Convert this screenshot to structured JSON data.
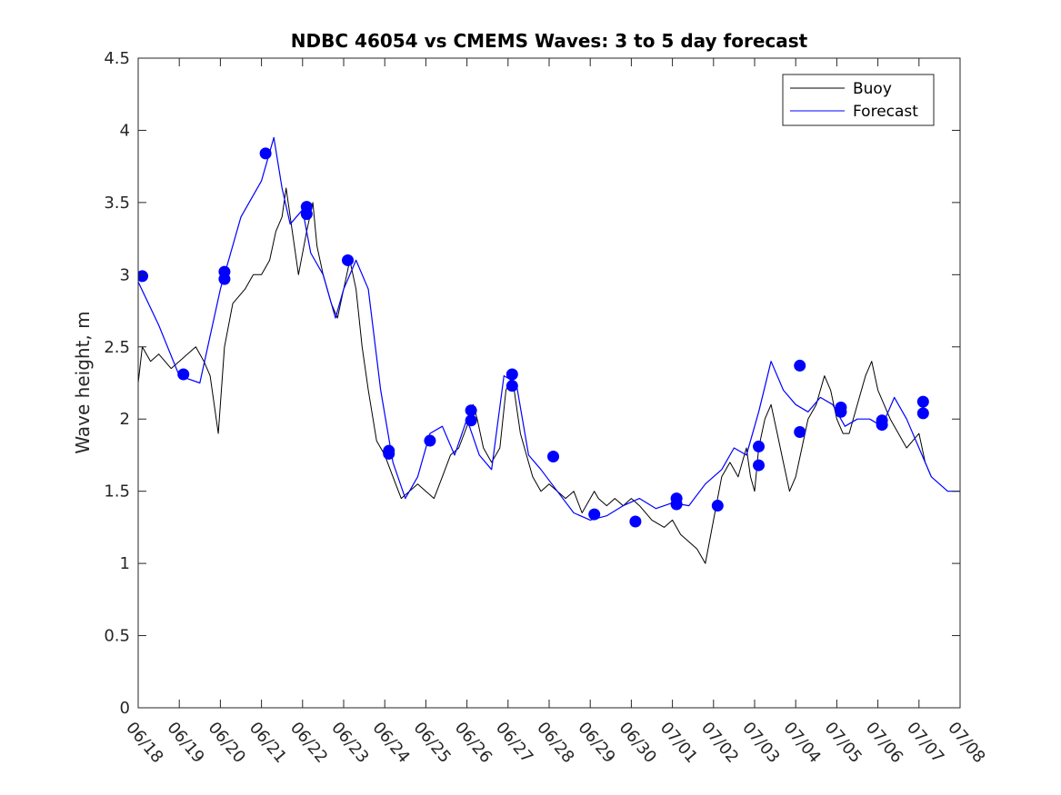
{
  "chart_data": {
    "type": "line",
    "title": "NDBC 46054 vs CMEMS Waves: 3 to 5 day forecast",
    "xlabel": "",
    "ylabel": "Wave height, m",
    "ylim": [
      0,
      4.5
    ],
    "xlim": [
      "06/18",
      "07/08"
    ],
    "x_tick_labels": [
      "06/18",
      "06/19",
      "06/20",
      "06/21",
      "06/22",
      "06/23",
      "06/24",
      "06/25",
      "06/26",
      "06/27",
      "06/28",
      "06/29",
      "06/30",
      "07/01",
      "07/02",
      "07/03",
      "07/04",
      "07/05",
      "07/06",
      "07/07",
      "07/08"
    ],
    "y_tick_labels": [
      "0",
      "0.5",
      "1",
      "1.5",
      "2",
      "2.5",
      "3",
      "3.5",
      "4",
      "4.5"
    ],
    "grid": false,
    "legend_position": "top-right",
    "series": [
      {
        "name": "Buoy",
        "color": "#000000",
        "x_day": [
          0,
          0.1,
          0.3,
          0.5,
          0.8,
          1.0,
          1.2,
          1.4,
          1.6,
          1.75,
          1.85,
          1.95,
          2.1,
          2.3,
          2.6,
          2.8,
          3.0,
          3.2,
          3.35,
          3.5,
          3.6,
          3.75,
          3.9,
          4.1,
          4.25,
          4.35,
          4.5,
          4.7,
          4.85,
          5.0,
          5.15,
          5.3,
          5.45,
          5.6,
          5.8,
          6.0,
          6.2,
          6.4,
          6.6,
          6.8,
          7.0,
          7.2,
          7.4,
          7.6,
          7.8,
          8.0,
          8.15,
          8.25,
          8.4,
          8.6,
          8.8,
          8.95,
          9.1,
          9.2,
          9.3,
          9.45,
          9.6,
          9.8,
          10.0,
          10.2,
          10.4,
          10.6,
          10.8,
          11.0,
          11.1,
          11.2,
          11.4,
          11.6,
          11.8,
          12.0,
          12.2,
          12.5,
          12.8,
          13.0,
          13.2,
          13.4,
          13.6,
          13.8,
          14.0,
          14.2,
          14.4,
          14.6,
          14.7,
          14.8,
          14.9,
          15.0,
          15.1,
          15.25,
          15.4,
          15.55,
          15.7,
          15.85,
          16.0,
          16.15,
          16.3,
          16.5,
          16.7,
          16.85,
          17.0,
          17.15,
          17.3,
          17.5,
          17.7,
          17.85,
          18.0,
          18.15,
          18.3,
          18.5,
          18.7,
          18.85,
          19.0,
          19.15,
          19.3
        ],
        "y": [
          2.25,
          2.5,
          2.4,
          2.45,
          2.35,
          2.4,
          2.45,
          2.5,
          2.4,
          2.3,
          2.1,
          1.9,
          2.5,
          2.8,
          2.9,
          3.0,
          3.0,
          3.1,
          3.3,
          3.4,
          3.6,
          3.3,
          3.0,
          3.3,
          3.5,
          3.2,
          3.0,
          2.8,
          2.7,
          2.9,
          3.1,
          2.9,
          2.5,
          2.2,
          1.85,
          1.75,
          1.6,
          1.45,
          1.5,
          1.55,
          1.5,
          1.45,
          1.6,
          1.75,
          1.8,
          1.95,
          2.1,
          2.0,
          1.8,
          1.7,
          1.8,
          2.2,
          2.3,
          2.1,
          1.9,
          1.75,
          1.6,
          1.5,
          1.55,
          1.5,
          1.45,
          1.5,
          1.35,
          1.45,
          1.5,
          1.45,
          1.4,
          1.45,
          1.4,
          1.45,
          1.4,
          1.3,
          1.25,
          1.3,
          1.2,
          1.15,
          1.1,
          1.0,
          1.3,
          1.6,
          1.7,
          1.6,
          1.7,
          1.8,
          1.6,
          1.5,
          1.8,
          2.0,
          2.1,
          1.9,
          1.7,
          1.5,
          1.6,
          1.8,
          2.0,
          2.1,
          2.3,
          2.2,
          2.0,
          1.9,
          1.9,
          2.1,
          2.3,
          2.4,
          2.2,
          2.1,
          2.0,
          1.9,
          1.8,
          1.85,
          1.9,
          1.7,
          1.6
        ]
      },
      {
        "name": "Forecast",
        "color": "#0000ff",
        "x_day": [
          0,
          0.5,
          1.0,
          1.5,
          2.0,
          2.5,
          3.0,
          3.3,
          3.5,
          3.7,
          4.0,
          4.2,
          4.5,
          4.8,
          5.0,
          5.3,
          5.6,
          5.9,
          6.2,
          6.5,
          6.8,
          7.1,
          7.4,
          7.7,
          8.0,
          8.3,
          8.6,
          8.9,
          9.2,
          9.5,
          9.8,
          10.2,
          10.6,
          11.0,
          11.4,
          11.8,
          12.2,
          12.6,
          13.0,
          13.4,
          13.8,
          14.2,
          14.5,
          14.8,
          15.1,
          15.4,
          15.7,
          16.0,
          16.3,
          16.6,
          16.9,
          17.2,
          17.5,
          17.8,
          18.1,
          18.4,
          18.7,
          19.0,
          19.3,
          19.7,
          20.0
        ],
        "y": [
          2.95,
          2.65,
          2.3,
          2.25,
          2.9,
          3.4,
          3.65,
          3.95,
          3.6,
          3.35,
          3.45,
          3.15,
          3.0,
          2.7,
          2.9,
          3.1,
          2.9,
          2.2,
          1.7,
          1.45,
          1.6,
          1.9,
          1.95,
          1.75,
          2.0,
          1.75,
          1.65,
          2.3,
          2.25,
          1.75,
          1.65,
          1.5,
          1.35,
          1.3,
          1.33,
          1.4,
          1.45,
          1.38,
          1.42,
          1.4,
          1.55,
          1.65,
          1.8,
          1.75,
          2.05,
          2.4,
          2.2,
          2.1,
          2.05,
          2.15,
          2.1,
          1.95,
          2.0,
          2.0,
          1.95,
          2.15,
          2.0,
          1.8,
          1.6,
          1.5,
          1.5
        ]
      }
    ],
    "forecast_markers": {
      "x_day": [
        0.1,
        1.1,
        2.1,
        2.1,
        3.1,
        4.1,
        4.1,
        5.1,
        6.1,
        6.1,
        7.1,
        8.1,
        8.1,
        9.1,
        9.1,
        10.1,
        11.1,
        12.1,
        13.1,
        13.1,
        14.1,
        15.1,
        15.1,
        16.1,
        16.1,
        17.1,
        17.1,
        18.1,
        18.1,
        19.1,
        19.1
      ],
      "y": [
        2.99,
        2.31,
        3.02,
        2.97,
        3.84,
        3.47,
        3.42,
        3.1,
        1.78,
        1.76,
        1.85,
        2.06,
        1.99,
        2.31,
        2.23,
        1.74,
        1.34,
        1.29,
        1.45,
        1.41,
        1.4,
        1.81,
        1.68,
        2.37,
        1.91,
        2.08,
        2.05,
        1.99,
        1.96,
        2.12,
        2.04
      ]
    }
  }
}
